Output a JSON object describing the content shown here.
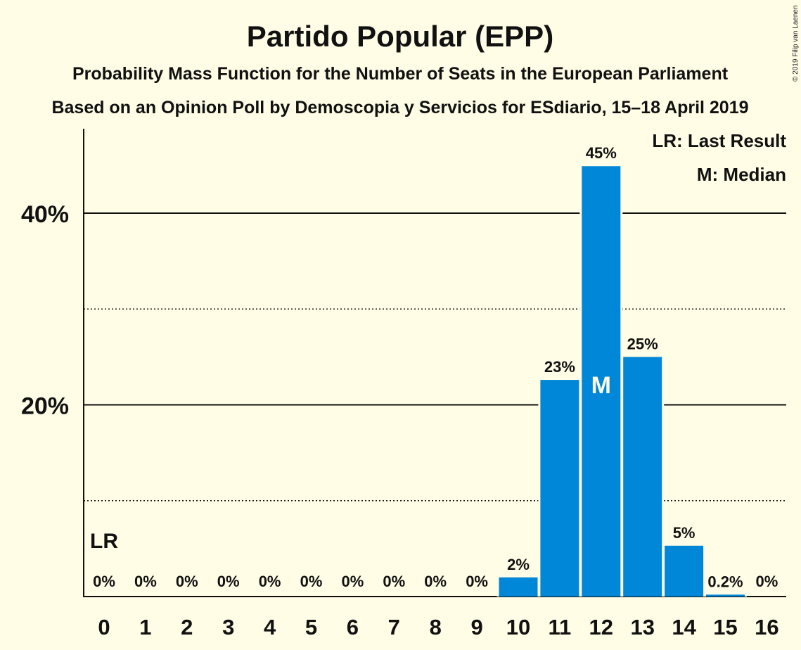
{
  "chart_data": {
    "type": "bar",
    "title": "Partido Popular (EPP)",
    "subtitle": "Probability Mass Function for the Number of Seats in the European Parliament",
    "subtitle2": "Based on an Opinion Poll by Demoscopia y Servicios for ESdiario, 15–18 April 2019",
    "copyright": "© 2019 Filip van Laenen",
    "categories": [
      "0",
      "1",
      "2",
      "3",
      "4",
      "5",
      "6",
      "7",
      "8",
      "9",
      "10",
      "11",
      "12",
      "13",
      "14",
      "15",
      "16"
    ],
    "values": [
      0,
      0,
      0,
      0,
      0,
      0,
      0,
      0,
      0,
      0,
      2.0,
      22.6,
      44.9,
      25.0,
      5.3,
      0.2,
      0
    ],
    "value_labels": [
      "0%",
      "0%",
      "0%",
      "0%",
      "0%",
      "0%",
      "0%",
      "0%",
      "0%",
      "0%",
      "2%",
      "23%",
      "45%",
      "25%",
      "5%",
      "0.2%",
      "0%"
    ],
    "ylim": [
      0,
      48
    ],
    "yticks_major": [
      {
        "value": 20,
        "label": "20%"
      },
      {
        "value": 40,
        "label": "40%"
      }
    ],
    "yticks_minor": [
      10,
      30
    ],
    "bar_color": "#0087d8",
    "last_result": {
      "index": 0,
      "label": "LR"
    },
    "median": {
      "index": 12,
      "label": "M"
    },
    "legend": [
      "LR: Last Result",
      "M: Median"
    ],
    "legend_position": "top-right"
  }
}
